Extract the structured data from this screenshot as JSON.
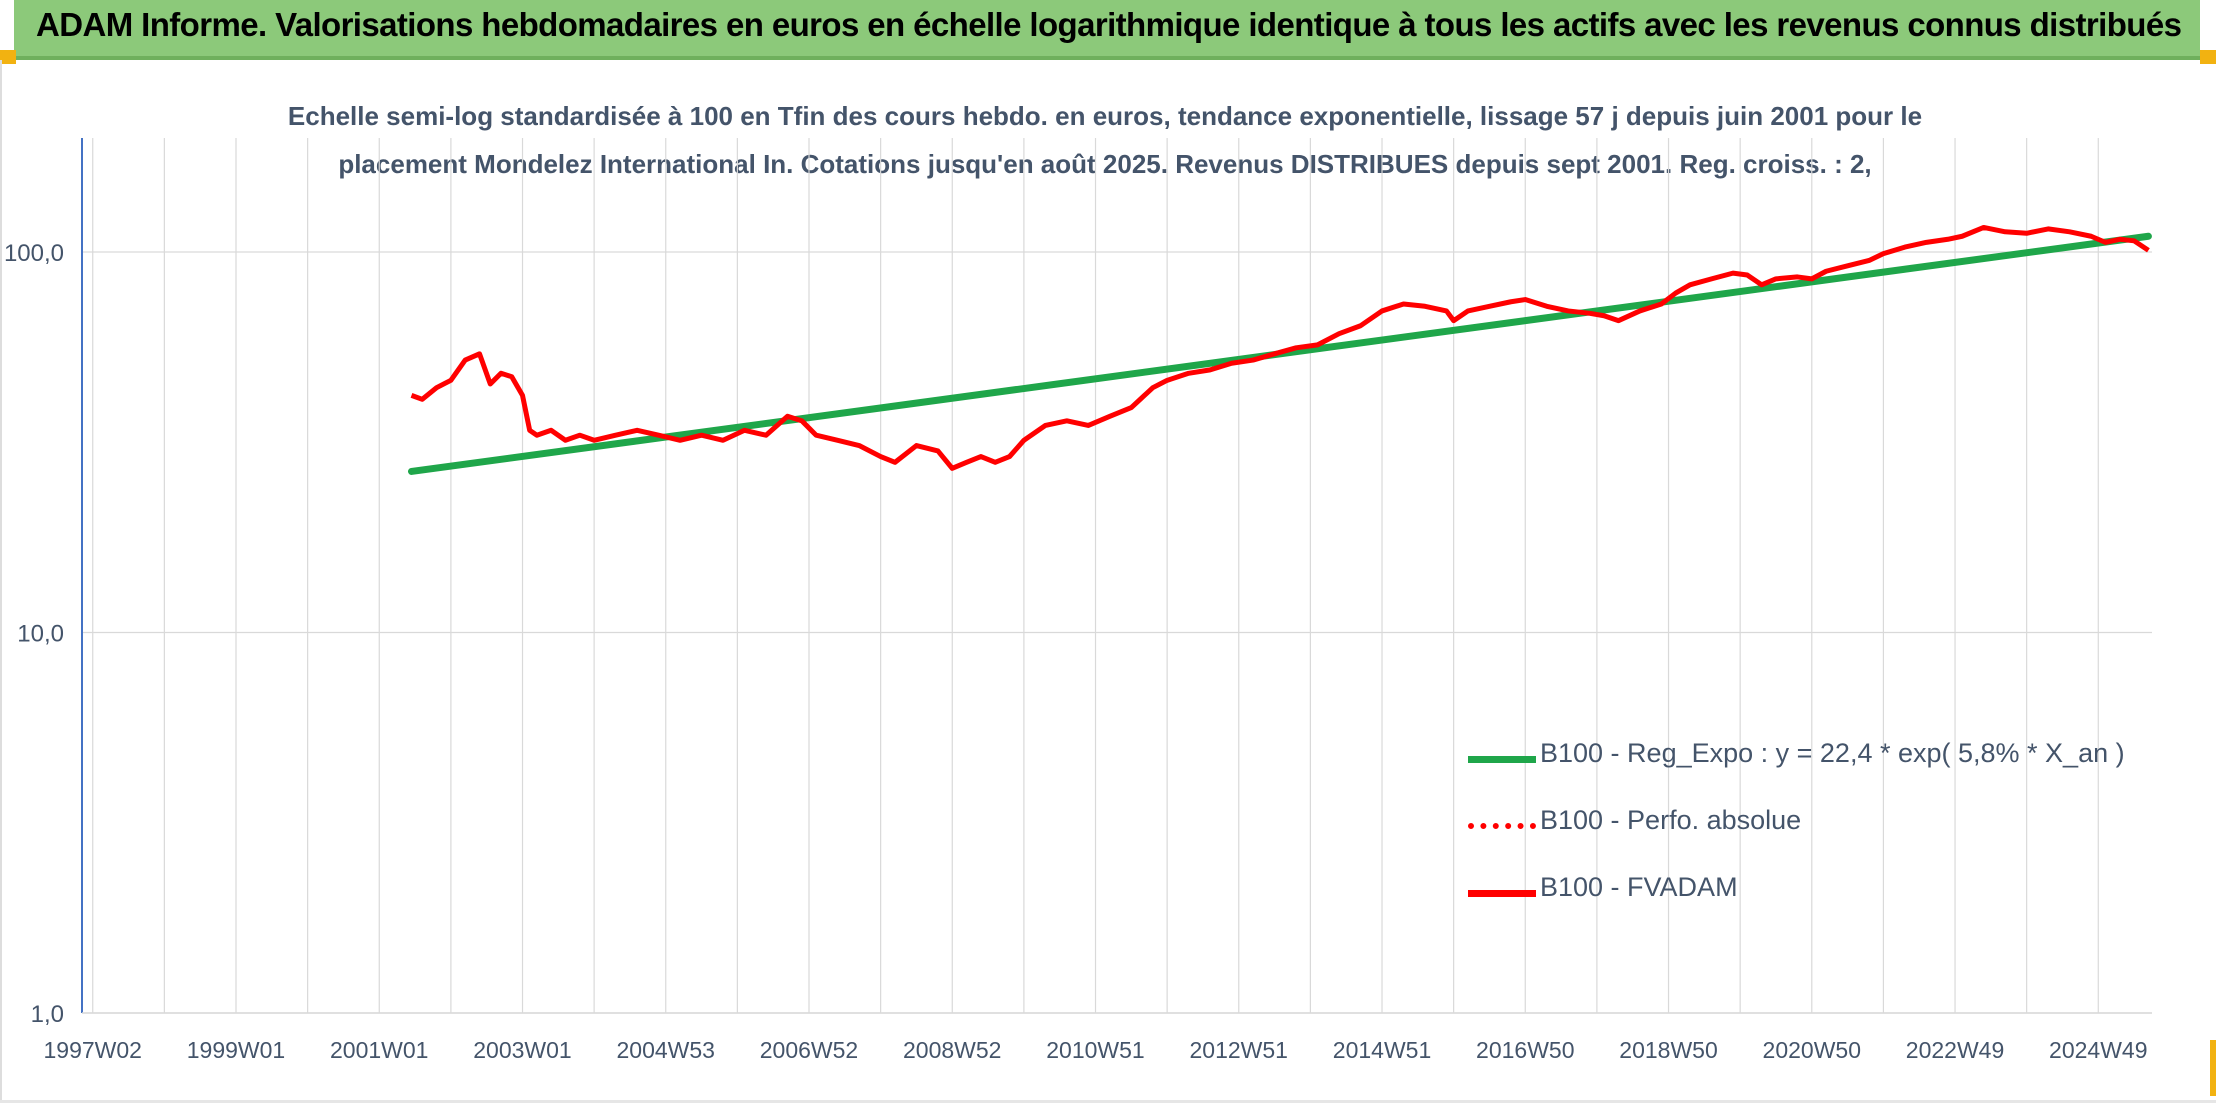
{
  "header": {
    "title": "ADAM Informe. Valorisations hebdomadaires en euros en échelle logarithmique identique à tous les actifs avec les revenus connus distribués"
  },
  "colors": {
    "banner": "#8cc97a",
    "accent_orange": "#f2b211",
    "trend_green": "#1fa64a",
    "series_red": "#ff0000",
    "text_slate": "#44546a",
    "grid": "#d9d9d9",
    "axis_blue": "#4472c4"
  },
  "chart_data": {
    "type": "line",
    "title_line1": "Echelle semi-log standardisée à 100 en Tfin des cours hebdo. en euros, tendance exponentielle, lissage 57 j depuis juin 2001 pour le",
    "title_line2": "placement Mondelez International In. Cotations jusqu'en août 2025. Revenus DISTRIBUES depuis sept 2001. Reg. croiss. : 2,",
    "y_scale": "log",
    "ylim": [
      1,
      200
    ],
    "y_ticks": [
      {
        "value": 100,
        "label": "100,0"
      },
      {
        "value": 10,
        "label": "10,0"
      },
      {
        "value": 1,
        "label": "1,0"
      }
    ],
    "x_range": [
      1997.0,
      2025.7
    ],
    "x_ticks": [
      {
        "value": 1997.0,
        "label": "1997W02"
      },
      {
        "value": 1999.0,
        "label": "1999W01"
      },
      {
        "value": 2001.0,
        "label": "2001W01"
      },
      {
        "value": 2003.0,
        "label": "2003W01"
      },
      {
        "value": 2005.0,
        "label": "2004W53"
      },
      {
        "value": 2007.0,
        "label": "2006W52"
      },
      {
        "value": 2009.0,
        "label": "2008W52"
      },
      {
        "value": 2011.0,
        "label": "2010W51"
      },
      {
        "value": 2013.0,
        "label": "2012W51"
      },
      {
        "value": 2015.0,
        "label": "2014W51"
      },
      {
        "value": 2017.0,
        "label": "2016W50"
      },
      {
        "value": 2019.0,
        "label": "2018W50"
      },
      {
        "value": 2021.0,
        "label": "2020W50"
      },
      {
        "value": 2023.0,
        "label": "2022W49"
      },
      {
        "value": 2025.0,
        "label": "2024W49"
      }
    ],
    "grid": true,
    "legend_position": "bottom-right",
    "series": [
      {
        "name": "B100 - Reg_Expo : y = 22,4 * exp( 5,8% *  X_an )",
        "color": "#1fa64a",
        "style": "solid",
        "x": [
          2001.45,
          2025.7
        ],
        "y": [
          26.5,
          110.0
        ]
      },
      {
        "name": "B100 - Perfo. absolue",
        "color": "#ff0000",
        "style": "dotted",
        "x": [],
        "y": []
      },
      {
        "name": "B100 - FVADAM",
        "color": "#ff0000",
        "style": "solid",
        "x": [
          2001.45,
          2001.6,
          2001.8,
          2002.0,
          2002.2,
          2002.4,
          2002.55,
          2002.7,
          2002.85,
          2003.0,
          2003.1,
          2003.2,
          2003.4,
          2003.6,
          2003.8,
          2004.0,
          2004.3,
          2004.6,
          2004.9,
          2005.2,
          2005.5,
          2005.8,
          2006.1,
          2006.4,
          2006.7,
          2006.9,
          2007.1,
          2007.4,
          2007.7,
          2008.0,
          2008.2,
          2008.5,
          2008.8,
          2009.0,
          2009.2,
          2009.4,
          2009.6,
          2009.8,
          2010.0,
          2010.3,
          2010.6,
          2010.9,
          2011.2,
          2011.5,
          2011.8,
          2012.0,
          2012.3,
          2012.6,
          2012.9,
          2013.2,
          2013.5,
          2013.8,
          2014.1,
          2014.4,
          2014.7,
          2015.0,
          2015.3,
          2015.6,
          2015.9,
          2016.0,
          2016.2,
          2016.5,
          2016.8,
          2017.0,
          2017.3,
          2017.6,
          2017.9,
          2018.1,
          2018.3,
          2018.6,
          2018.9,
          2019.1,
          2019.3,
          2019.6,
          2019.9,
          2020.1,
          2020.3,
          2020.5,
          2020.8,
          2021.0,
          2021.2,
          2021.5,
          2021.8,
          2022.0,
          2022.3,
          2022.6,
          2022.9,
          2023.1,
          2023.4,
          2023.7,
          2024.0,
          2024.3,
          2024.6,
          2024.9,
          2025.1,
          2025.3,
          2025.5,
          2025.7
        ],
        "y": [
          42,
          41,
          44,
          46,
          52,
          54,
          45,
          48,
          47,
          42,
          34,
          33,
          34,
          32,
          33,
          32,
          33,
          34,
          33,
          32,
          33,
          32,
          34,
          33,
          37,
          36,
          33,
          32,
          31,
          29,
          28,
          31,
          30,
          27,
          28,
          29,
          28,
          29,
          32,
          35,
          36,
          35,
          37,
          39,
          44,
          46,
          48,
          49,
          51,
          52,
          54,
          56,
          57,
          61,
          64,
          70,
          73,
          72,
          70,
          66,
          70,
          72,
          74,
          75,
          72,
          70,
          69,
          68,
          66,
          70,
          73,
          78,
          82,
          85,
          88,
          87,
          82,
          85,
          86,
          85,
          89,
          92,
          95,
          99,
          103,
          106,
          108,
          110,
          116,
          113,
          112,
          115,
          113,
          110,
          106,
          108,
          107,
          101
        ]
      }
    ]
  }
}
